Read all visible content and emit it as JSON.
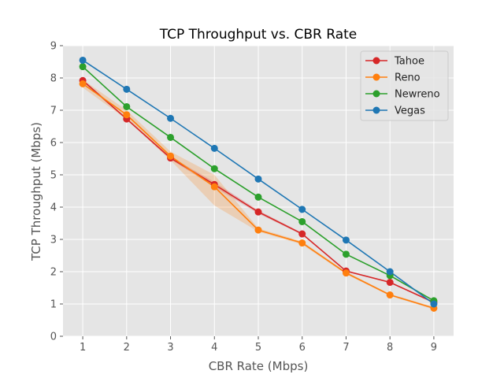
{
  "chart_data": {
    "type": "line",
    "title": "TCP Throughput vs. CBR Rate",
    "xlabel": "CBR Rate (Mbps)",
    "ylabel": "TCP Throughput (Mbps)",
    "x": [
      1,
      2,
      3,
      4,
      5,
      6,
      7,
      8,
      9
    ],
    "xlim": [
      0.55,
      9.45
    ],
    "ylim": [
      0,
      9
    ],
    "xticks": [
      "1",
      "2",
      "3",
      "4",
      "5",
      "6",
      "7",
      "8",
      "9"
    ],
    "yticks": [
      "0",
      "1",
      "2",
      "3",
      "4",
      "5",
      "6",
      "7",
      "8",
      "9"
    ],
    "grid": true,
    "legend_position": "top-right",
    "series": [
      {
        "name": "Tahoe",
        "color": "#d62728",
        "values": [
          7.92,
          6.73,
          5.52,
          4.7,
          3.85,
          3.17,
          2.02,
          1.67,
          1.05
        ],
        "band_low": [
          7.88,
          6.7,
          5.48,
          4.62,
          3.8,
          3.14,
          2.0,
          1.65,
          1.02
        ],
        "band_high": [
          7.96,
          6.76,
          5.56,
          4.78,
          3.9,
          3.2,
          2.04,
          1.69,
          1.08
        ]
      },
      {
        "name": "Reno",
        "color": "#ff7f0e",
        "values": [
          7.82,
          6.86,
          5.58,
          4.63,
          3.29,
          2.89,
          1.96,
          1.28,
          0.87
        ],
        "band_low": [
          7.7,
          6.72,
          5.45,
          4.05,
          3.24,
          2.84,
          1.92,
          1.25,
          0.83
        ],
        "band_high": [
          7.95,
          7.0,
          5.72,
          5.0,
          3.34,
          2.94,
          2.0,
          1.31,
          0.91
        ]
      },
      {
        "name": "Newreno",
        "color": "#2ca02c",
        "values": [
          8.35,
          7.11,
          6.16,
          5.19,
          4.31,
          3.55,
          2.54,
          1.88,
          1.1
        ],
        "band_low": [
          8.33,
          7.09,
          6.14,
          5.17,
          4.29,
          3.53,
          2.52,
          1.86,
          1.08
        ],
        "band_high": [
          8.37,
          7.13,
          6.18,
          5.21,
          4.33,
          3.57,
          2.56,
          1.9,
          1.12
        ]
      },
      {
        "name": "Vegas",
        "color": "#1f77b4",
        "values": [
          8.55,
          7.65,
          6.75,
          5.82,
          4.87,
          3.93,
          2.98,
          2.0,
          1.0
        ],
        "band_low": [
          8.54,
          7.64,
          6.74,
          5.81,
          4.86,
          3.92,
          2.97,
          1.99,
          0.99
        ],
        "band_high": [
          8.56,
          7.66,
          6.76,
          5.83,
          4.88,
          3.94,
          2.99,
          2.01,
          1.01
        ]
      }
    ]
  }
}
